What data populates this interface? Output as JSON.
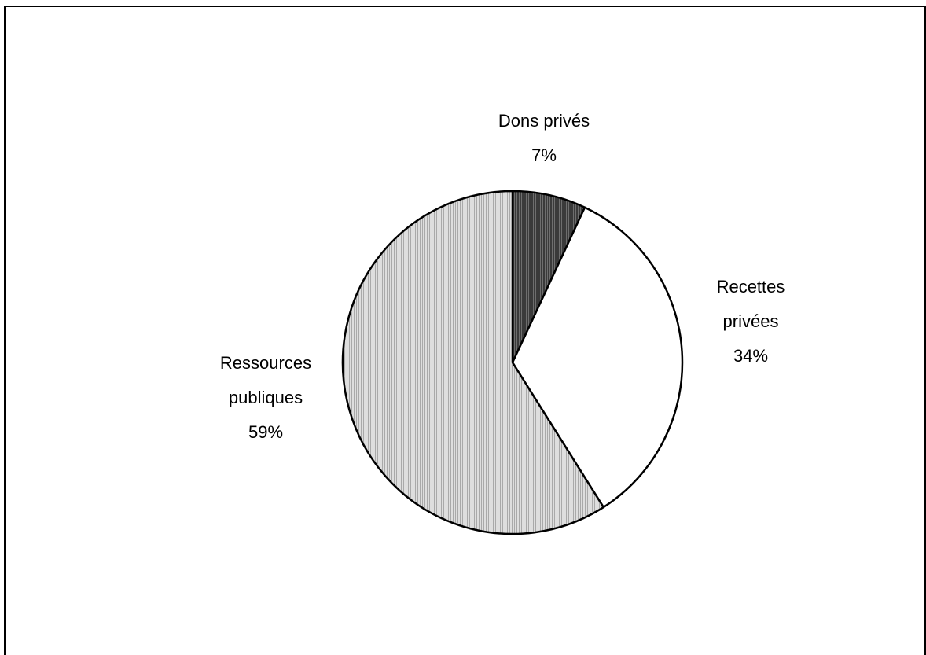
{
  "chart_data": {
    "type": "pie",
    "title": "",
    "start_angle_deg": 0,
    "direction": "clockwise",
    "slices": [
      {
        "label_lines": [
          "Dons privés"
        ],
        "pct_label": "7%",
        "value": 7,
        "fill": "#3a3a3a",
        "pattern": "dark-hatch"
      },
      {
        "label_lines": [
          "Recettes",
          "privées"
        ],
        "pct_label": "34%",
        "value": 34,
        "fill": "#ffffff",
        "pattern": "none"
      },
      {
        "label_lines": [
          "Ressources",
          "publiques"
        ],
        "pct_label": "59%",
        "value": 59,
        "fill": "#cfcfcf",
        "pattern": "light-hatch"
      }
    ],
    "legend": "none"
  }
}
